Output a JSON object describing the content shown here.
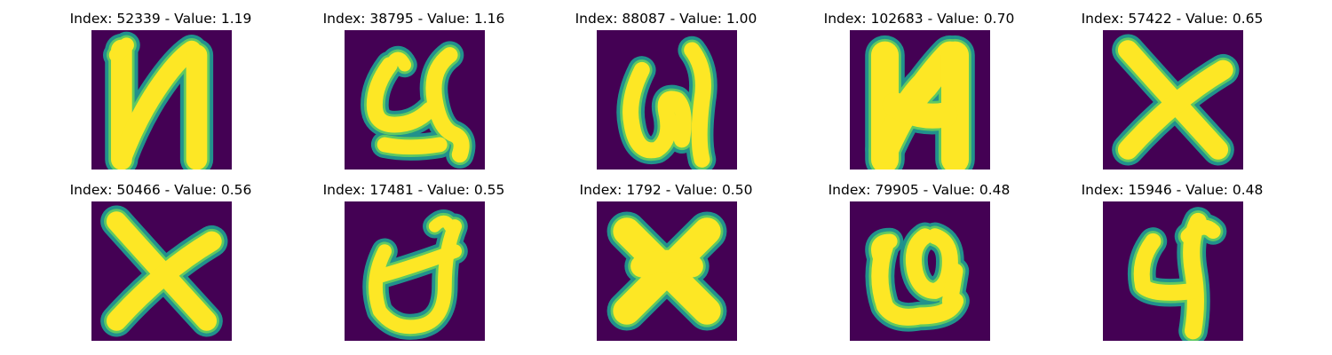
{
  "colors": {
    "background": "#440154",
    "mid": "#21918c",
    "edge": "#5ec962",
    "stroke": "#fde725"
  },
  "panels": [
    {
      "index": "52339",
      "value": "1.19",
      "title": "Index: 52339 - Value: 1.19",
      "glyph": "N-reversed"
    },
    {
      "index": "38795",
      "value": "1.16",
      "title": "Index: 38795 - Value: 1.16",
      "glyph": "looped-u"
    },
    {
      "index": "88087",
      "value": "1.00",
      "title": "Index: 88087 - Value: 1.00",
      "glyph": "loop-n"
    },
    {
      "index": "102683",
      "value": "0.70",
      "title": "Index: 102683 - Value: 0.70",
      "glyph": "bold-N-reversed"
    },
    {
      "index": "57422",
      "value": "0.65",
      "title": "Index: 57422 - Value: 0.65",
      "glyph": "x"
    },
    {
      "index": "50466",
      "value": "0.56",
      "title": "Index: 50466 - Value: 0.56",
      "glyph": "x"
    },
    {
      "index": "17481",
      "value": "0.55",
      "title": "Index: 17481 - Value: 0.55",
      "glyph": "looped-d"
    },
    {
      "index": "1792",
      "value": "0.50",
      "title": "Index: 1792 - Value: 0.50",
      "glyph": "bold-x"
    },
    {
      "index": "79905",
      "value": "0.48",
      "title": "Index: 79905 - Value: 0.48",
      "glyph": "looped-u-dot"
    },
    {
      "index": "15946",
      "value": "0.48",
      "title": "Index: 15946 - Value: 0.48",
      "glyph": "four"
    }
  ]
}
